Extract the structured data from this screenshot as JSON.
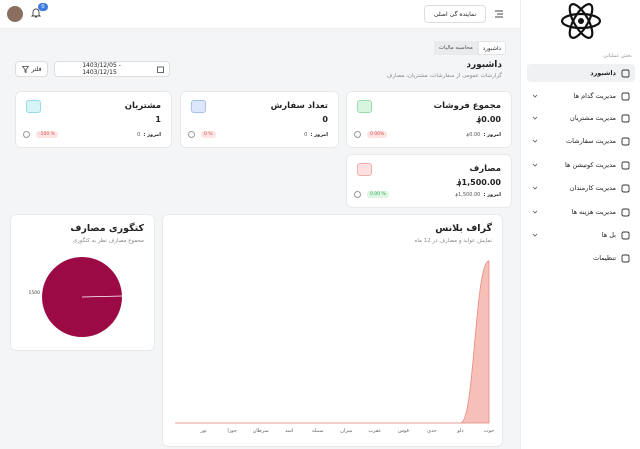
{
  "header": {
    "notifications": "0",
    "branch_button": "نماینده گی اصلی"
  },
  "sidebar": {
    "section_label": "بخش عملیاتی",
    "items": [
      "داشبورد",
      "مدیریت گدام ها",
      "مدیریت مشتریان",
      "مدیریت سفارشات",
      "مدیریت کوتیشن ها",
      "مدیریت کارمندان",
      "مدیریت هزینه ها",
      "بل ها",
      "تنظیمات"
    ]
  },
  "breadcrumb": [
    "داشبورد",
    "محاسبه مالیات"
  ],
  "page": {
    "title": "داشبورد",
    "subtitle": "گزارشات عمومی از سفارشات، مشتریان، مصارف",
    "date_range": "1403/12/05 - 1403/12/15",
    "filter_button": "فلتر"
  },
  "cards": [
    {
      "title": "مجموع فروشات",
      "value": "0.00؋",
      "badge": "0.00%",
      "today_label": "امروز :",
      "today_value": "0.00؋"
    },
    {
      "title": "تعداد سفارش",
      "value": "0",
      "badge": "0 %",
      "today_label": "امروز :",
      "today_value": "0"
    },
    {
      "title": "مشتریان",
      "value": "1",
      "badge": "-100 %",
      "today_label": "امروز :",
      "today_value": "0"
    },
    {
      "title": "مصارف",
      "value": "1,500.00؋",
      "badge": "0.00 %",
      "today_label": "امروز :",
      "today_value": "1,500.00؋"
    }
  ],
  "chart_data": [
    {
      "type": "pie",
      "title": "کتگوری مصارف",
      "subtitle": "مجموع مصارف نظر به کتگوری",
      "values": [
        1500
      ],
      "color": "#9b0a45"
    },
    {
      "type": "area",
      "title": "گراف بلانس",
      "subtitle": "نمایش عواید و مصارف در 12 ماه",
      "categories": [
        null,
        "ثور",
        "جوزا",
        "سرطان",
        "اسد",
        "سنبله",
        "میزان",
        "عقرب",
        "قوس",
        "جدی",
        "دلو",
        "حوت"
      ],
      "values": [
        0,
        0,
        0,
        0,
        0,
        0,
        0,
        0,
        0,
        0,
        0,
        1500
      ],
      "color": "#f4b4ab",
      "ylim": [
        0,
        1600
      ]
    }
  ]
}
